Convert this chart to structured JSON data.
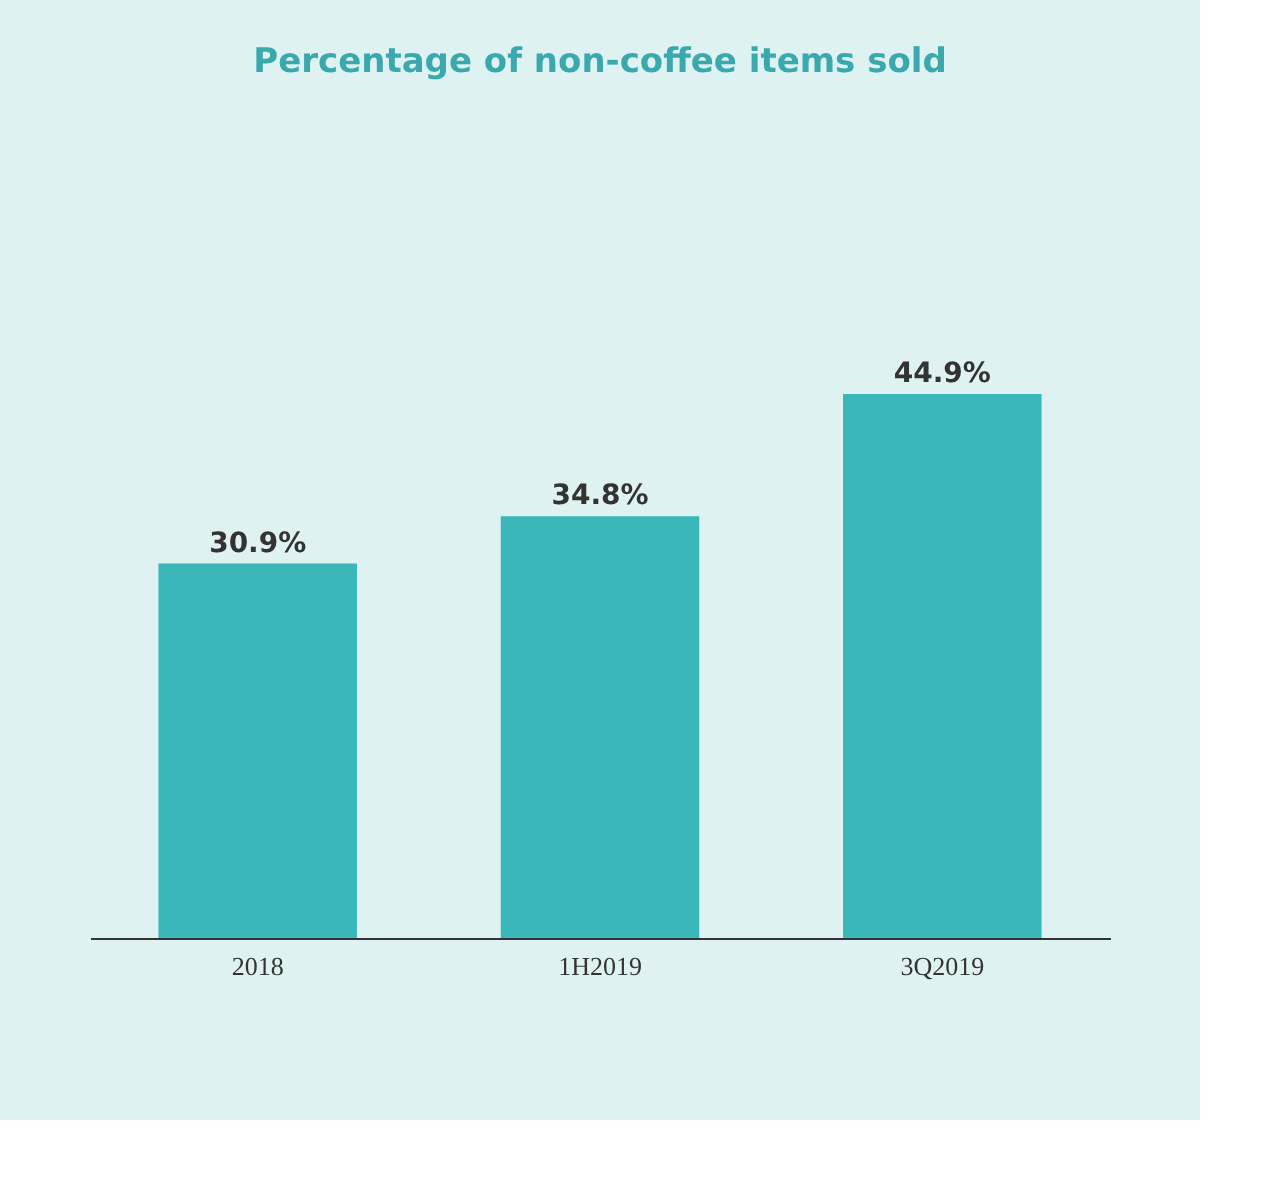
{
  "chart_data": {
    "type": "bar",
    "title": "Percentage of non-coffee items sold",
    "categories": [
      "2018",
      "1H2019",
      "3Q2019"
    ],
    "values": [
      30.9,
      34.8,
      44.9
    ],
    "color": "#3ab7b9",
    "value_labels": [
      "30.9%",
      "34.8%",
      "44.9%"
    ]
  }
}
